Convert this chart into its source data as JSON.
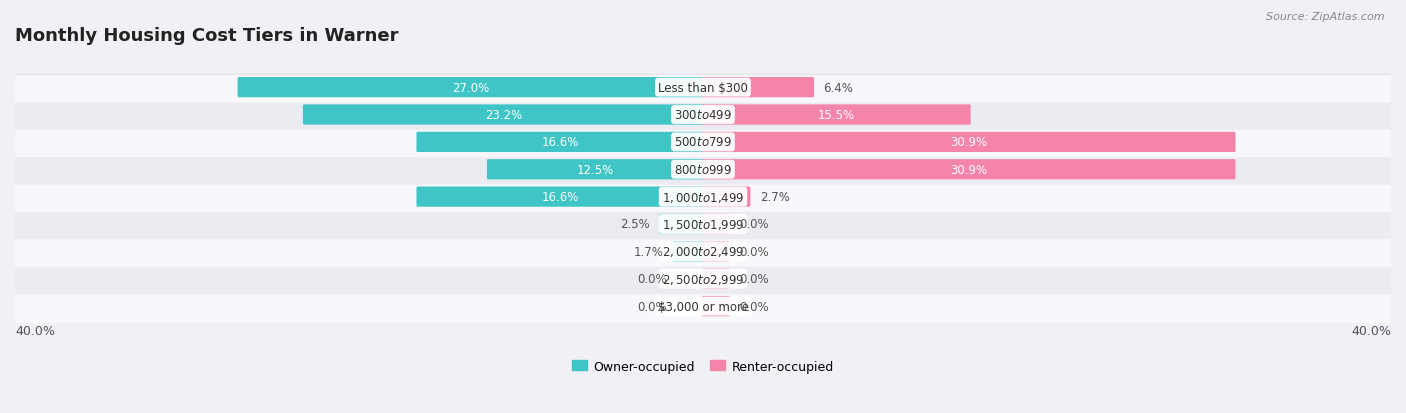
{
  "title": "Monthly Housing Cost Tiers in Warner",
  "source": "Source: ZipAtlas.com",
  "categories": [
    "Less than $300",
    "$300 to $499",
    "$500 to $799",
    "$800 to $999",
    "$1,000 to $1,499",
    "$1,500 to $1,999",
    "$2,000 to $2,499",
    "$2,500 to $2,999",
    "$3,000 or more"
  ],
  "owner_values": [
    27.0,
    23.2,
    16.6,
    12.5,
    16.6,
    2.5,
    1.7,
    0.0,
    0.0
  ],
  "renter_values": [
    6.4,
    15.5,
    30.9,
    30.9,
    2.7,
    0.0,
    0.0,
    0.0,
    0.0
  ],
  "owner_color": "#3fc5c5",
  "renter_color": "#f585a8",
  "axis_limit": 40.0,
  "bg_color": "#f0f0f5",
  "row_bg_even": "#f8f8fc",
  "row_bg_odd": "#ebebf2",
  "legend_owner": "Owner-occupied",
  "legend_renter": "Renter-occupied",
  "title_fontsize": 13,
  "bar_fontsize": 8.5,
  "legend_fontsize": 9,
  "axis_label_fontsize": 9
}
